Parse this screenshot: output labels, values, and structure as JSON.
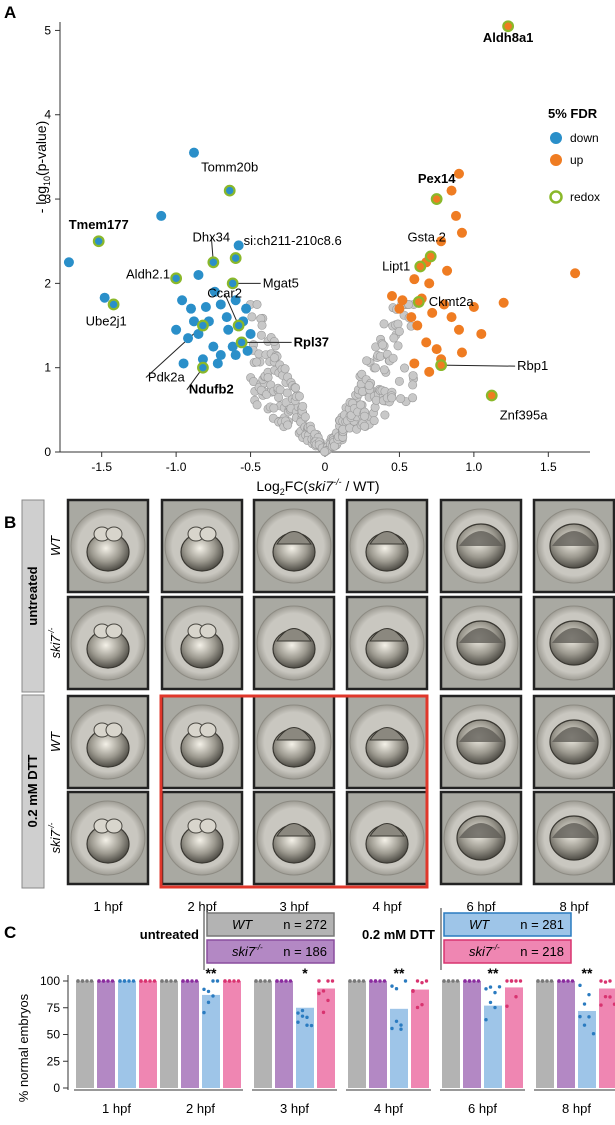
{
  "panels": {
    "a": "A",
    "b": "B",
    "c": "C"
  },
  "colors": {
    "down": "#2a8fc9",
    "up": "#ef7c22",
    "redox": "#8ab82a",
    "ns": "#c8c8c8",
    "wt_untreated": "#b3b3b3",
    "ski7_untreated": "#b388c4",
    "wt_dtt": "#9ec5e8",
    "ski7_dtt": "#ef86b2",
    "highlight": "#e0372b"
  },
  "volcano": {
    "xlabel": {
      "pre": "Log",
      "sub": "2",
      "mid": "FC(",
      "it": "ski7",
      "sup": "-/-",
      "post": " / WT)"
    },
    "ylabel": {
      "pre": "- log",
      "sub": "10",
      "post": "(p-value)"
    },
    "xticks": [
      "-1.5",
      "-1.0",
      "-0.5",
      "0",
      "0.5",
      "1.0",
      "1.5"
    ],
    "yticks": [
      "0",
      "1",
      "2",
      "3",
      "4",
      "5"
    ],
    "legend": {
      "title": "5% FDR",
      "down": "down",
      "up": "up",
      "redox": "redox"
    }
  },
  "chart_data": {
    "type": "scatter",
    "xlim": [
      -1.78,
      1.78
    ],
    "ylim": [
      0,
      5.1
    ],
    "grid": false,
    "legend_placement": "right",
    "down": [
      [
        -1.72,
        2.25
      ],
      [
        -0.88,
        3.55
      ],
      [
        -1.1,
        2.8
      ],
      [
        -1.48,
        1.83
      ],
      [
        -0.58,
        2.45
      ],
      [
        -0.85,
        2.1
      ],
      [
        -0.74,
        1.9
      ],
      [
        -0.96,
        1.8
      ],
      [
        -0.9,
        1.7
      ],
      [
        -0.8,
        1.72
      ],
      [
        -0.7,
        1.75
      ],
      [
        -0.6,
        1.8
      ],
      [
        -0.53,
        1.7
      ],
      [
        -0.88,
        1.55
      ],
      [
        -0.78,
        1.55
      ],
      [
        -0.55,
        1.55
      ],
      [
        -0.65,
        1.45
      ],
      [
        -1.0,
        1.45
      ],
      [
        -0.92,
        1.35
      ],
      [
        -0.75,
        1.25
      ],
      [
        -0.5,
        1.4
      ],
      [
        -0.82,
        1.1
      ],
      [
        -0.72,
        1.05
      ],
      [
        -0.6,
        1.15
      ],
      [
        -0.95,
        1.05
      ],
      [
        -0.52,
        1.2
      ],
      [
        -0.66,
        1.6
      ],
      [
        -0.85,
        1.4
      ],
      [
        -0.62,
        1.25
      ],
      [
        -0.7,
        1.15
      ]
    ],
    "up": [
      [
        0.9,
        3.3
      ],
      [
        0.85,
        3.1
      ],
      [
        0.75,
        3.0
      ],
      [
        0.88,
        2.8
      ],
      [
        0.92,
        2.6
      ],
      [
        0.78,
        2.5
      ],
      [
        1.68,
        2.12
      ],
      [
        0.68,
        2.25
      ],
      [
        0.82,
        2.15
      ],
      [
        0.6,
        2.05
      ],
      [
        0.7,
        2.0
      ],
      [
        0.45,
        1.85
      ],
      [
        0.52,
        1.8
      ],
      [
        0.65,
        1.82
      ],
      [
        0.8,
        1.75
      ],
      [
        1.0,
        1.72
      ],
      [
        1.2,
        1.77
      ],
      [
        0.5,
        1.7
      ],
      [
        0.58,
        1.6
      ],
      [
        0.72,
        1.65
      ],
      [
        0.85,
        1.6
      ],
      [
        0.62,
        1.5
      ],
      [
        0.9,
        1.45
      ],
      [
        1.05,
        1.4
      ],
      [
        0.68,
        1.3
      ],
      [
        0.75,
        1.22
      ],
      [
        0.92,
        1.18
      ],
      [
        0.78,
        1.1
      ],
      [
        0.6,
        1.05
      ],
      [
        0.7,
        0.95
      ]
    ],
    "redox": [
      [
        1.23,
        5.05
      ],
      [
        -1.52,
        2.5
      ],
      [
        -0.64,
        3.1
      ],
      [
        -0.75,
        2.25
      ],
      [
        -0.6,
        2.3
      ],
      [
        -1.0,
        2.06
      ],
      [
        -0.62,
        2.0
      ],
      [
        -1.42,
        1.75
      ],
      [
        -0.82,
        1.5
      ],
      [
        -0.58,
        1.5
      ],
      [
        -0.56,
        1.3
      ],
      [
        -0.82,
        1.0
      ],
      [
        0.75,
        3.0
      ],
      [
        0.71,
        2.32
      ],
      [
        0.64,
        2.2
      ],
      [
        0.63,
        1.78
      ],
      [
        0.78,
        1.03
      ],
      [
        1.12,
        0.67
      ]
    ],
    "ns_x": [
      -0.48,
      -0.44,
      -0.41,
      -0.38,
      -0.35,
      -0.32,
      -0.29,
      -0.26,
      -0.23,
      -0.2,
      -0.17,
      -0.14,
      -0.11,
      -0.08,
      -0.05,
      -0.02,
      0.02,
      0.05,
      0.08,
      0.11,
      0.14,
      0.17,
      0.2,
      0.23,
      0.26,
      0.29,
      0.32,
      0.35,
      0.38,
      0.41,
      0.44,
      0.47,
      0.52,
      0.58
    ],
    "gene_labels": [
      {
        "name": "Aldh8a1",
        "bold": true,
        "x": 1.23,
        "y": 5.05
      },
      {
        "name": "Tmem177",
        "bold": true,
        "x": -1.52,
        "y": 2.5
      },
      {
        "name": "Tomm20b",
        "bold": false,
        "x": -0.64,
        "y": 3.1
      },
      {
        "name": "Dhx34",
        "bold": false,
        "x": -0.75,
        "y": 2.25
      },
      {
        "name": "si:ch211-210c8.6",
        "bold": false,
        "x": -0.6,
        "y": 2.3
      },
      {
        "name": "Aldh2.1",
        "bold": false,
        "x": -1.0,
        "y": 2.06
      },
      {
        "name": "Mgat5",
        "bold": false,
        "x": -0.62,
        "y": 2.0
      },
      {
        "name": "Ube2j1",
        "bold": false,
        "x": -1.42,
        "y": 1.75
      },
      {
        "name": "Ccar2",
        "bold": false,
        "x": -0.58,
        "y": 1.5
      },
      {
        "name": "Rpl37",
        "bold": true,
        "x": -0.56,
        "y": 1.3
      },
      {
        "name": "Pdk2a",
        "bold": false,
        "x": -0.82,
        "y": 1.5
      },
      {
        "name": "Ndufb2",
        "bold": true,
        "x": -0.82,
        "y": 1.0
      },
      {
        "name": "Pex14",
        "bold": true,
        "x": 0.75,
        "y": 3.0
      },
      {
        "name": "Gsta.2",
        "bold": false,
        "x": 0.71,
        "y": 2.32
      },
      {
        "name": "Lipt1",
        "bold": false,
        "x": 0.64,
        "y": 2.2
      },
      {
        "name": "Ckmt2a",
        "bold": false,
        "x": 0.63,
        "y": 1.78
      },
      {
        "name": "Rbp1",
        "bold": false,
        "x": 0.78,
        "y": 1.03
      },
      {
        "name": "Znf395a",
        "bold": false,
        "x": 1.12,
        "y": 0.67
      }
    ],
    "bars": {
      "type": "bar",
      "ylabel": "% normal embryos",
      "ylim": [
        0,
        100
      ],
      "yticks": [
        "0",
        "25",
        "50",
        "75",
        "100"
      ],
      "groups": [
        "1 hpf",
        "2 hpf",
        "3 hpf",
        "4 hpf",
        "6 hpf",
        "8 hpf"
      ],
      "series": [
        {
          "name": "WT untreated",
          "values": [
            100,
            100,
            100,
            100,
            100,
            100
          ]
        },
        {
          "name": "ski7-/- untreated",
          "values": [
            100,
            100,
            100,
            100,
            100,
            100
          ]
        },
        {
          "name": "WT 0.2 mM DTT",
          "values": [
            100,
            87,
            75,
            74,
            77,
            72
          ]
        },
        {
          "name": "ski7-/- 0.2 mM DTT",
          "values": [
            100,
            100,
            93,
            92,
            94,
            93
          ]
        }
      ],
      "significance": [
        "",
        "**",
        "*",
        "**",
        "**",
        "**"
      ]
    }
  },
  "embryos": {
    "rows": [
      {
        "group": "untreated",
        "genotype": "WT",
        "sup": ""
      },
      {
        "group": "untreated",
        "genotype": "ski7",
        "sup": "-/-"
      },
      {
        "group": "0.2 mM DTT",
        "genotype": "WT",
        "sup": ""
      },
      {
        "group": "0.2 mM DTT",
        "genotype": "ski7",
        "sup": "-/-"
      }
    ],
    "groups": [
      "untreated",
      "0.2 mM DTT"
    ],
    "timepoints": [
      "1 hpf",
      "2 hpf",
      "3 hpf",
      "4 hpf",
      "6 hpf",
      "8 hpf"
    ]
  },
  "bar_legend": {
    "untreated": "untreated",
    "dtt": "0.2 mM DTT",
    "items": [
      {
        "geno": "WT",
        "sup": "",
        "n": "n = 272"
      },
      {
        "geno": "ski7",
        "sup": "-/-",
        "n": "n = 186"
      },
      {
        "geno": "WT",
        "sup": "",
        "n": "n = 281"
      },
      {
        "geno": "ski7",
        "sup": "-/-",
        "n": "n = 218"
      }
    ]
  }
}
